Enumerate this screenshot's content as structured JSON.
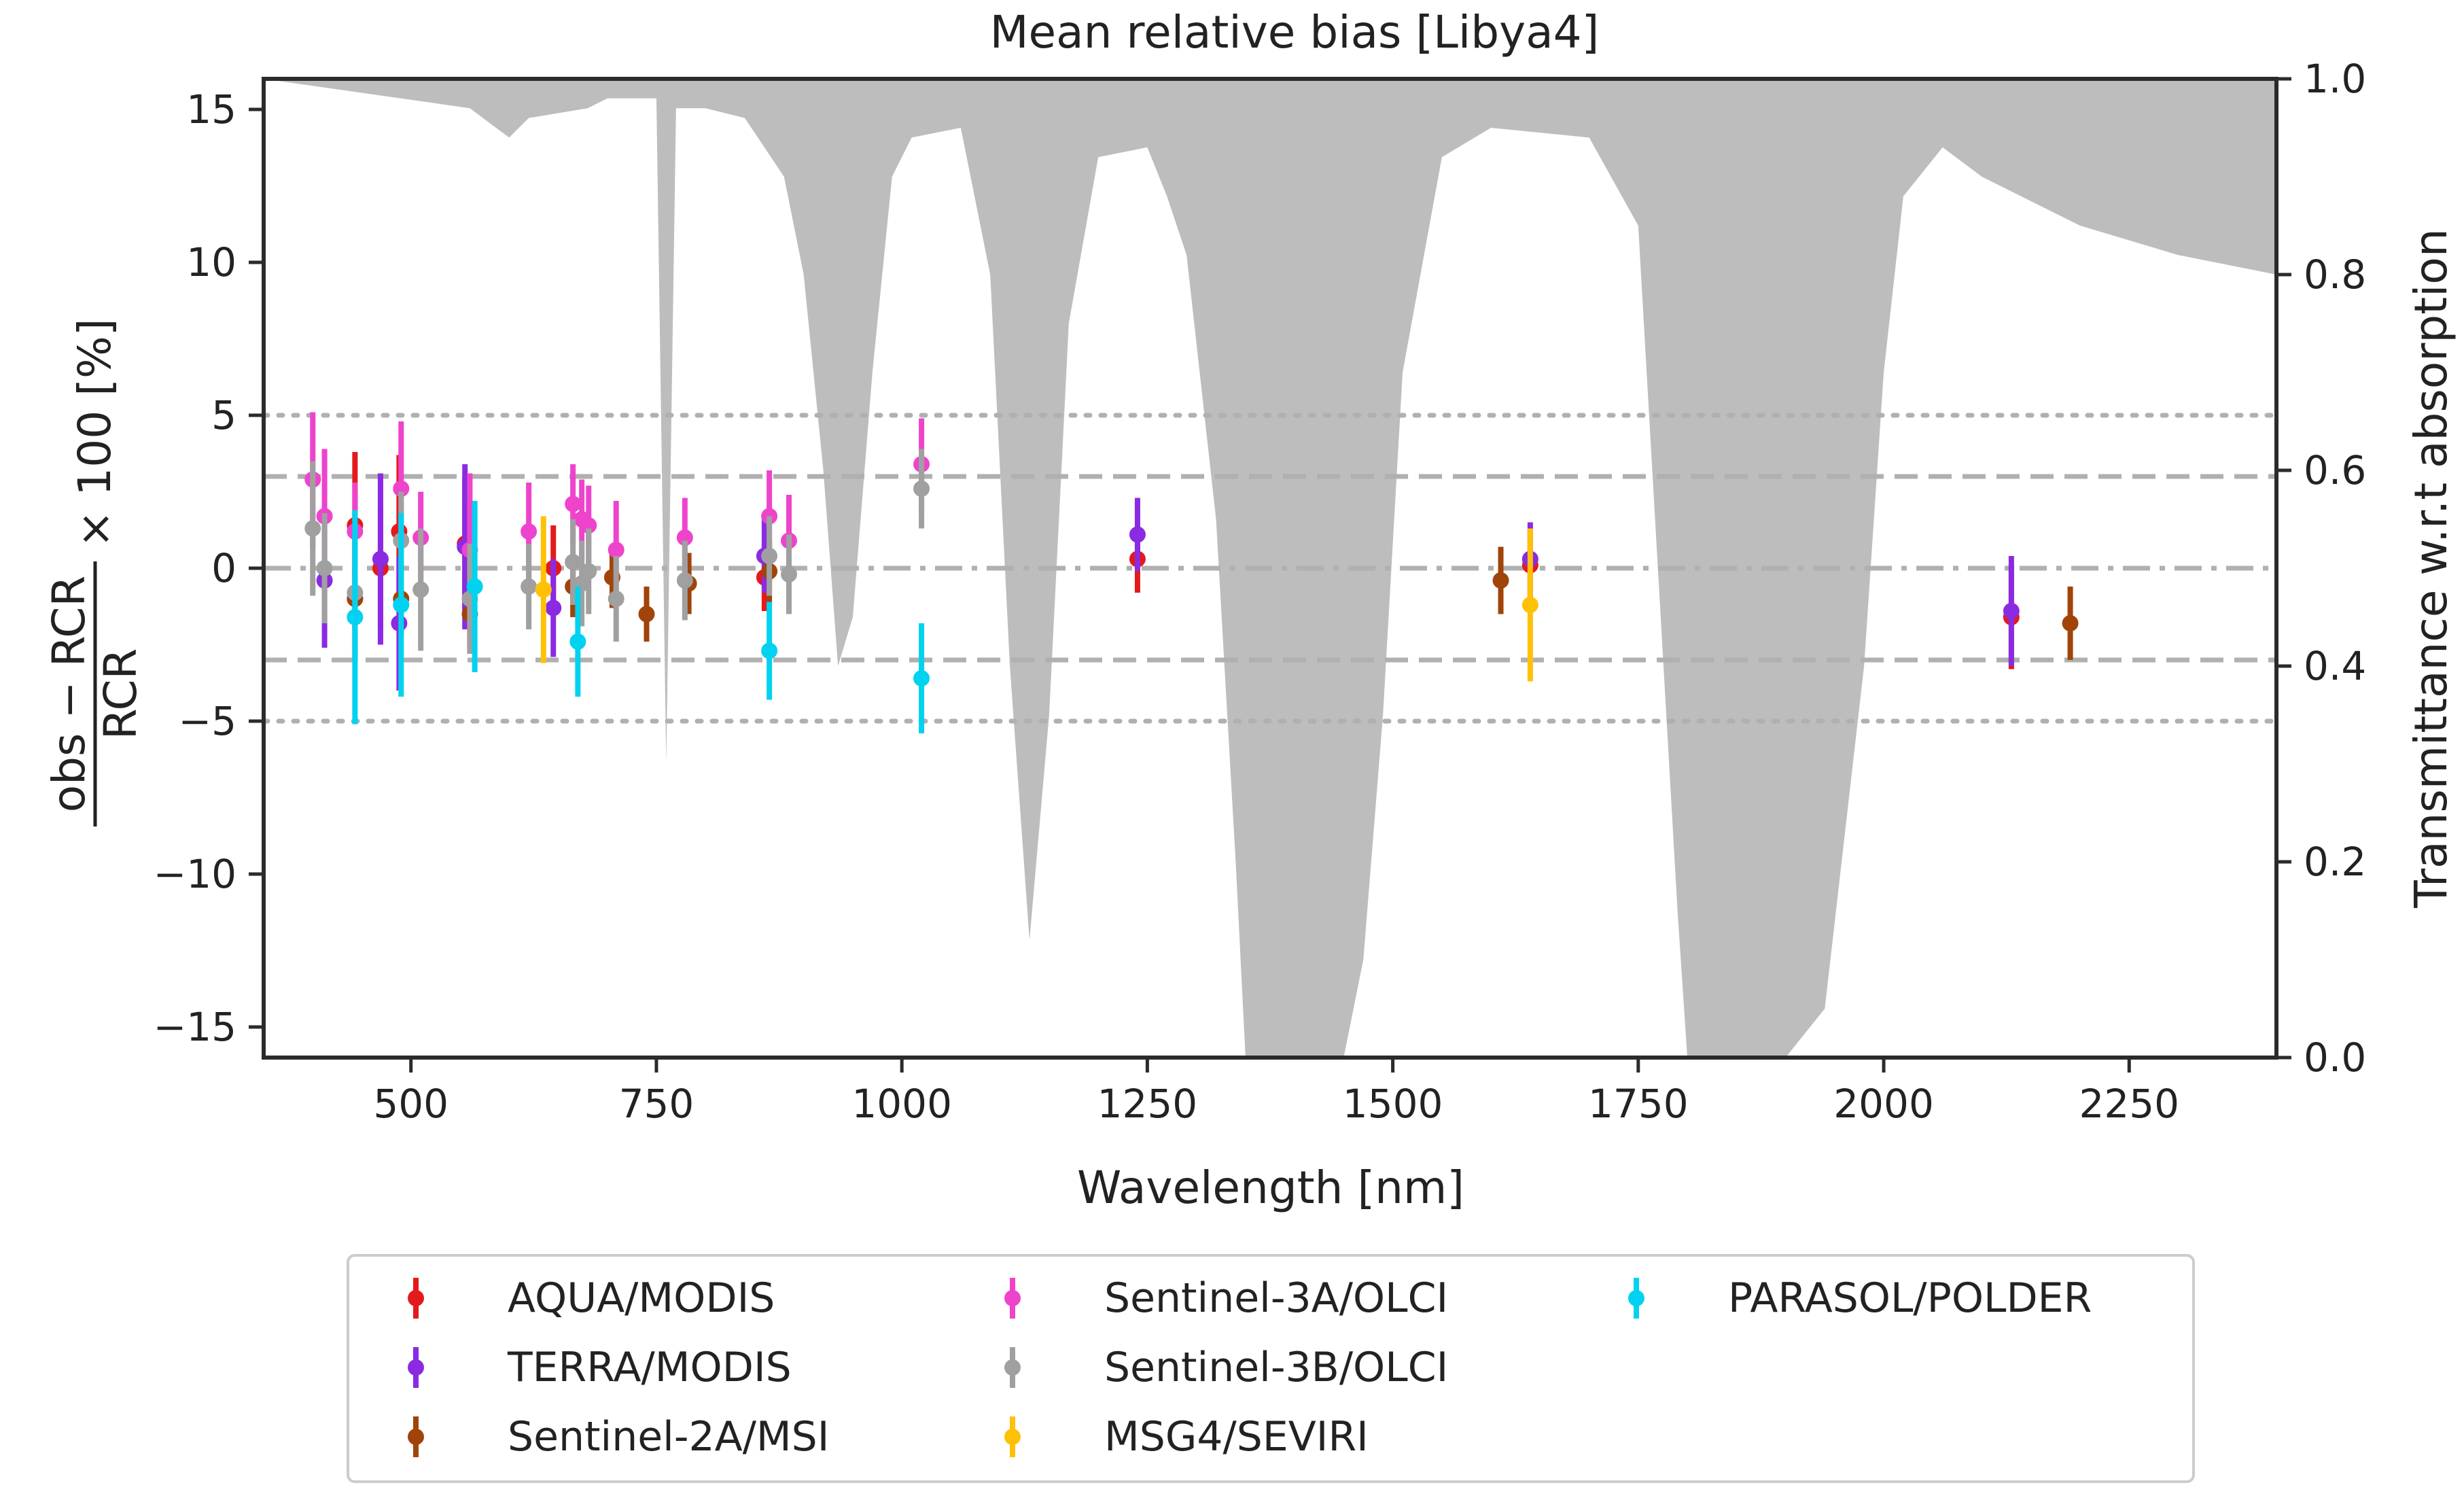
{
  "chart_data": {
    "type": "scatter",
    "title": "Mean relative bias [Libya4]",
    "xlabel": "Wavelength [nm]",
    "ylabel": {
      "numerator": "obs − RCR",
      "denominator": "RCR",
      "suffix": "× 100 [%]"
    },
    "y2label": "Transmittance w.r.t absorption",
    "xlim": [
      350,
      2400
    ],
    "ylim": [
      -16,
      16
    ],
    "y2lim": [
      0,
      1
    ],
    "xticks": [
      500,
      750,
      1000,
      1250,
      1500,
      1750,
      2000,
      2250
    ],
    "yticks": [
      -15,
      -10,
      -5,
      0,
      5,
      10,
      15
    ],
    "ytick_labels": [
      "−15",
      "−10",
      "−5",
      "0",
      "5",
      "10",
      "15"
    ],
    "y2ticks": [
      0.0,
      0.2,
      0.4,
      0.6,
      0.8,
      1.0
    ],
    "y2tick_labels": [
      "0.0",
      "0.2",
      "0.4",
      "0.6",
      "0.8",
      "1.0"
    ],
    "reference_lines": [
      {
        "y": 0,
        "style": "dashdot"
      },
      {
        "y": 3,
        "style": "dashed"
      },
      {
        "y": -3,
        "style": "dashed"
      },
      {
        "y": 5,
        "style": "dotted"
      },
      {
        "y": -5,
        "style": "dotted"
      }
    ],
    "transmittance": {
      "color": "#bdbdbd",
      "x": [
        350,
        560,
        600,
        620,
        680,
        700,
        750,
        760,
        770,
        800,
        840,
        880,
        900,
        920,
        935,
        950,
        970,
        990,
        1010,
        1060,
        1090,
        1110,
        1130,
        1150,
        1170,
        1200,
        1250,
        1270,
        1290,
        1320,
        1340,
        1350,
        1380,
        1420,
        1450,
        1470,
        1490,
        1510,
        1550,
        1600,
        1700,
        1750,
        1770,
        1790,
        1800,
        1830,
        1870,
        1900,
        1940,
        1980,
        2000,
        2020,
        2060,
        2100,
        2200,
        2300,
        2400
      ],
      "y": [
        1.0,
        0.97,
        0.94,
        0.96,
        0.97,
        0.98,
        0.98,
        0.3,
        0.97,
        0.97,
        0.96,
        0.9,
        0.8,
        0.6,
        0.4,
        0.45,
        0.7,
        0.9,
        0.94,
        0.95,
        0.8,
        0.4,
        0.12,
        0.35,
        0.75,
        0.92,
        0.93,
        0.88,
        0.82,
        0.55,
        0.2,
        0.0,
        0.0,
        0.0,
        0.0,
        0.1,
        0.35,
        0.7,
        0.92,
        0.95,
        0.94,
        0.85,
        0.5,
        0.15,
        0.0,
        0.0,
        0.0,
        0.0,
        0.05,
        0.4,
        0.7,
        0.88,
        0.93,
        0.9,
        0.85,
        0.82,
        0.8
      ]
    },
    "series": [
      {
        "name": "AQUA/MODIS",
        "color": "#e31a1c",
        "points": [
          {
            "x": 443,
            "y": 1.4,
            "err": 2.4
          },
          {
            "x": 469,
            "y": 0.0,
            "err": 2.0
          },
          {
            "x": 488,
            "y": 1.2,
            "err": 2.5
          },
          {
            "x": 555,
            "y": 0.8,
            "err": 2.2
          },
          {
            "x": 645,
            "y": 0.0,
            "err": 1.4
          },
          {
            "x": 860,
            "y": -0.3,
            "err": 1.1
          },
          {
            "x": 1240,
            "y": 0.3,
            "err": 1.1
          },
          {
            "x": 1640,
            "y": 0.1,
            "err": 1.2
          },
          {
            "x": 2130,
            "y": -1.6,
            "err": 1.7
          }
        ]
      },
      {
        "name": "TERRA/MODIS",
        "color": "#8a2be2",
        "points": [
          {
            "x": 412,
            "y": -0.4,
            "err": 2.2
          },
          {
            "x": 443,
            "y": -1.0,
            "err": 2.0
          },
          {
            "x": 469,
            "y": 0.3,
            "err": 2.8
          },
          {
            "x": 488,
            "y": -1.8,
            "err": 2.2
          },
          {
            "x": 555,
            "y": 0.7,
            "err": 2.7
          },
          {
            "x": 645,
            "y": -1.3,
            "err": 1.6
          },
          {
            "x": 860,
            "y": 0.4,
            "err": 1.2
          },
          {
            "x": 1240,
            "y": 1.1,
            "err": 1.2
          },
          {
            "x": 1640,
            "y": 0.3,
            "err": 1.2
          },
          {
            "x": 2130,
            "y": -1.4,
            "err": 1.8
          }
        ]
      },
      {
        "name": "Sentinel-2A/MSI",
        "color": "#a0440a",
        "points": [
          {
            "x": 443,
            "y": -1.0,
            "err": 1.0
          },
          {
            "x": 490,
            "y": -1.0,
            "err": 1.2
          },
          {
            "x": 560,
            "y": -1.5,
            "err": 1.2
          },
          {
            "x": 665,
            "y": -0.6,
            "err": 1.0
          },
          {
            "x": 705,
            "y": -0.3,
            "err": 1.0
          },
          {
            "x": 740,
            "y": -1.5,
            "err": 0.9
          },
          {
            "x": 783,
            "y": -0.5,
            "err": 1.0
          },
          {
            "x": 865,
            "y": -0.1,
            "err": 1.0
          },
          {
            "x": 1610,
            "y": -0.4,
            "err": 1.1
          },
          {
            "x": 2190,
            "y": -1.8,
            "err": 1.2
          }
        ]
      },
      {
        "name": "Sentinel-3A/OLCI",
        "color": "#ee44cc",
        "points": [
          {
            "x": 400,
            "y": 2.9,
            "err": 2.2
          },
          {
            "x": 412,
            "y": 1.7,
            "err": 2.2
          },
          {
            "x": 443,
            "y": 1.2,
            "err": 1.6
          },
          {
            "x": 490,
            "y": 2.6,
            "err": 2.2
          },
          {
            "x": 510,
            "y": 1.0,
            "err": 1.5
          },
          {
            "x": 560,
            "y": 0.6,
            "err": 2.5
          },
          {
            "x": 620,
            "y": 1.2,
            "err": 1.6
          },
          {
            "x": 665,
            "y": 2.1,
            "err": 1.3
          },
          {
            "x": 674,
            "y": 1.6,
            "err": 1.3
          },
          {
            "x": 681,
            "y": 1.4,
            "err": 1.3
          },
          {
            "x": 709,
            "y": 0.6,
            "err": 1.6
          },
          {
            "x": 779,
            "y": 1.0,
            "err": 1.3
          },
          {
            "x": 865,
            "y": 1.7,
            "err": 1.5
          },
          {
            "x": 885,
            "y": 0.9,
            "err": 1.5
          },
          {
            "x": 1020,
            "y": 3.4,
            "err": 1.5
          }
        ]
      },
      {
        "name": "Sentinel-3B/OLCI",
        "color": "#a0a0a0",
        "points": [
          {
            "x": 400,
            "y": 1.3,
            "err": 2.2
          },
          {
            "x": 412,
            "y": 0.0,
            "err": 1.8
          },
          {
            "x": 443,
            "y": -0.8,
            "err": 1.8
          },
          {
            "x": 490,
            "y": 0.9,
            "err": 1.6
          },
          {
            "x": 510,
            "y": -0.7,
            "err": 2.0
          },
          {
            "x": 560,
            "y": -1.0,
            "err": 1.8
          },
          {
            "x": 620,
            "y": -0.6,
            "err": 1.4
          },
          {
            "x": 665,
            "y": 0.2,
            "err": 1.4
          },
          {
            "x": 674,
            "y": -0.5,
            "err": 1.4
          },
          {
            "x": 681,
            "y": -0.1,
            "err": 1.4
          },
          {
            "x": 709,
            "y": -1.0,
            "err": 1.4
          },
          {
            "x": 779,
            "y": -0.4,
            "err": 1.3
          },
          {
            "x": 865,
            "y": 0.4,
            "err": 1.3
          },
          {
            "x": 885,
            "y": -0.2,
            "err": 1.3
          },
          {
            "x": 1020,
            "y": 2.6,
            "err": 1.3
          }
        ]
      },
      {
        "name": "MSG4/SEVIRI",
        "color": "#ffc107",
        "points": [
          {
            "x": 635,
            "y": -0.7,
            "err": 2.4
          },
          {
            "x": 1640,
            "y": -1.2,
            "err": 2.5
          }
        ]
      },
      {
        "name": "PARASOL/POLDER",
        "color": "#00d2f0",
        "points": [
          {
            "x": 443,
            "y": -1.6,
            "err": 3.5
          },
          {
            "x": 490,
            "y": -1.2,
            "err": 3.0
          },
          {
            "x": 565,
            "y": -0.6,
            "err": 2.8
          },
          {
            "x": 670,
            "y": -2.4,
            "err": 1.8
          },
          {
            "x": 865,
            "y": -2.7,
            "err": 1.6
          },
          {
            "x": 1020,
            "y": -3.6,
            "err": 1.8
          }
        ]
      }
    ]
  }
}
